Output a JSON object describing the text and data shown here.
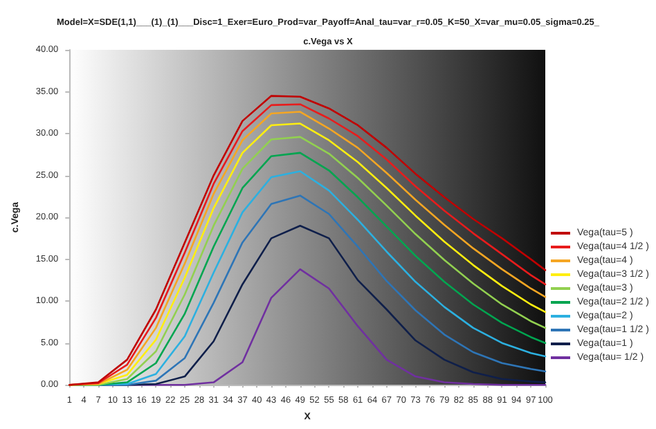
{
  "chart_data": {
    "type": "line",
    "title": "Model=X=SDE(1,1)___(1)_(1)___Disc=1_Exer=Euro_Prod=var_Payoff=Anal_tau=var_r=0.05_K=50_X=var_mu=0.05_sigma=0.25_",
    "subtitle": "c.Vega vs X",
    "xlabel": "X",
    "ylabel": "c.Vega",
    "x": [
      1,
      7,
      13,
      19,
      25,
      31,
      37,
      43,
      49,
      55,
      61,
      67,
      73,
      79,
      85,
      91,
      97,
      100
    ],
    "series": [
      {
        "name": "Vega(tau=5 )",
        "color": "#c00000",
        "values": [
          0,
          0.3,
          3,
          9,
          17,
          25,
          31.5,
          34.5,
          34.4,
          33.0,
          31.0,
          28.3,
          25.2,
          22.4,
          19.8,
          17.5,
          15.0,
          13.7
        ]
      },
      {
        "name": "Vega(tau=4 1/2 )",
        "color": "#e81c1c",
        "values": [
          0,
          0.2,
          2.4,
          8,
          15.8,
          24,
          30.3,
          33.4,
          33.5,
          31.8,
          29.7,
          26.9,
          23.7,
          20.8,
          18.1,
          15.6,
          13.1,
          12.0
        ]
      },
      {
        "name": "Vega(tau=4 )",
        "color": "#f5a623",
        "values": [
          0,
          0.1,
          1.8,
          6.8,
          14.5,
          22.8,
          29.2,
          32.4,
          32.6,
          30.6,
          28.3,
          25.3,
          22.1,
          19.1,
          16.3,
          13.8,
          11.5,
          10.5
        ]
      },
      {
        "name": "Vega(tau=3 1/2 )",
        "color": "#ffee10",
        "values": [
          0,
          0.1,
          1.2,
          5.4,
          12.8,
          21.1,
          27.7,
          31.0,
          31.2,
          29.2,
          26.6,
          23.5,
          20.2,
          17.1,
          14.3,
          11.8,
          9.6,
          8.7
        ]
      },
      {
        "name": "Vega(tau=3 )",
        "color": "#92d050",
        "values": [
          0,
          0,
          0.7,
          4.0,
          10.8,
          19.0,
          25.8,
          29.3,
          29.6,
          27.6,
          24.7,
          21.4,
          18.0,
          14.9,
          12.1,
          9.6,
          7.6,
          6.8
        ]
      },
      {
        "name": "Vega(tau=2 1/2 )",
        "color": "#00a550",
        "values": [
          0,
          0,
          0.3,
          2.6,
          8.5,
          16.5,
          23.5,
          27.3,
          27.7,
          25.6,
          22.4,
          18.9,
          15.4,
          12.3,
          9.6,
          7.4,
          5.7,
          5.0
        ]
      },
      {
        "name": "Vega(tau=2 )",
        "color": "#2cb0e0",
        "values": [
          0,
          0,
          0.1,
          1.3,
          5.8,
          13.4,
          20.6,
          24.8,
          25.5,
          23.2,
          19.7,
          15.9,
          12.3,
          9.3,
          6.8,
          5.0,
          3.8,
          3.4
        ]
      },
      {
        "name": "Vega(tau=1 1/2 )",
        "color": "#2e75b6",
        "values": [
          0,
          0,
          0,
          0.5,
          3.2,
          9.8,
          17.0,
          21.6,
          22.6,
          20.4,
          16.5,
          12.4,
          8.9,
          6.0,
          3.9,
          2.6,
          1.9,
          1.6
        ]
      },
      {
        "name": "Vega(tau=1 )",
        "color": "#0f1f4a",
        "values": [
          0,
          0,
          0,
          0.1,
          1.0,
          5.2,
          12.0,
          17.5,
          19.0,
          17.5,
          12.5,
          9.0,
          5.3,
          3.0,
          1.5,
          0.7,
          0.4,
          0.3
        ]
      },
      {
        "name": "Vega(tau= 1/2 )",
        "color": "#7030a0",
        "values": [
          0,
          0,
          0,
          0,
          0,
          0.3,
          2.7,
          10.4,
          13.8,
          11.5,
          7.0,
          3.0,
          1.0,
          0.3,
          0.1,
          0,
          0,
          0
        ]
      }
    ],
    "xlim": [
      1,
      100
    ],
    "xticks": [
      1,
      4,
      7,
      10,
      13,
      16,
      19,
      22,
      25,
      28,
      31,
      34,
      37,
      40,
      43,
      46,
      49,
      52,
      55,
      58,
      61,
      64,
      67,
      70,
      73,
      76,
      79,
      82,
      85,
      88,
      91,
      94,
      97,
      100
    ],
    "ylim": [
      0,
      40
    ],
    "yticks": [
      {
        "value": 0,
        "label": "0.00"
      },
      {
        "value": 5,
        "label": "5.00"
      },
      {
        "value": 10,
        "label": "10.00"
      },
      {
        "value": 15,
        "label": "15.00"
      },
      {
        "value": 20,
        "label": "20.00"
      },
      {
        "value": 25,
        "label": "25.00"
      },
      {
        "value": 30,
        "label": "30.00"
      },
      {
        "value": 35,
        "label": "35.00"
      },
      {
        "value": 40,
        "label": "40.00"
      }
    ],
    "grid": false,
    "legend": "right",
    "marker": "none",
    "line_style": "solid"
  }
}
